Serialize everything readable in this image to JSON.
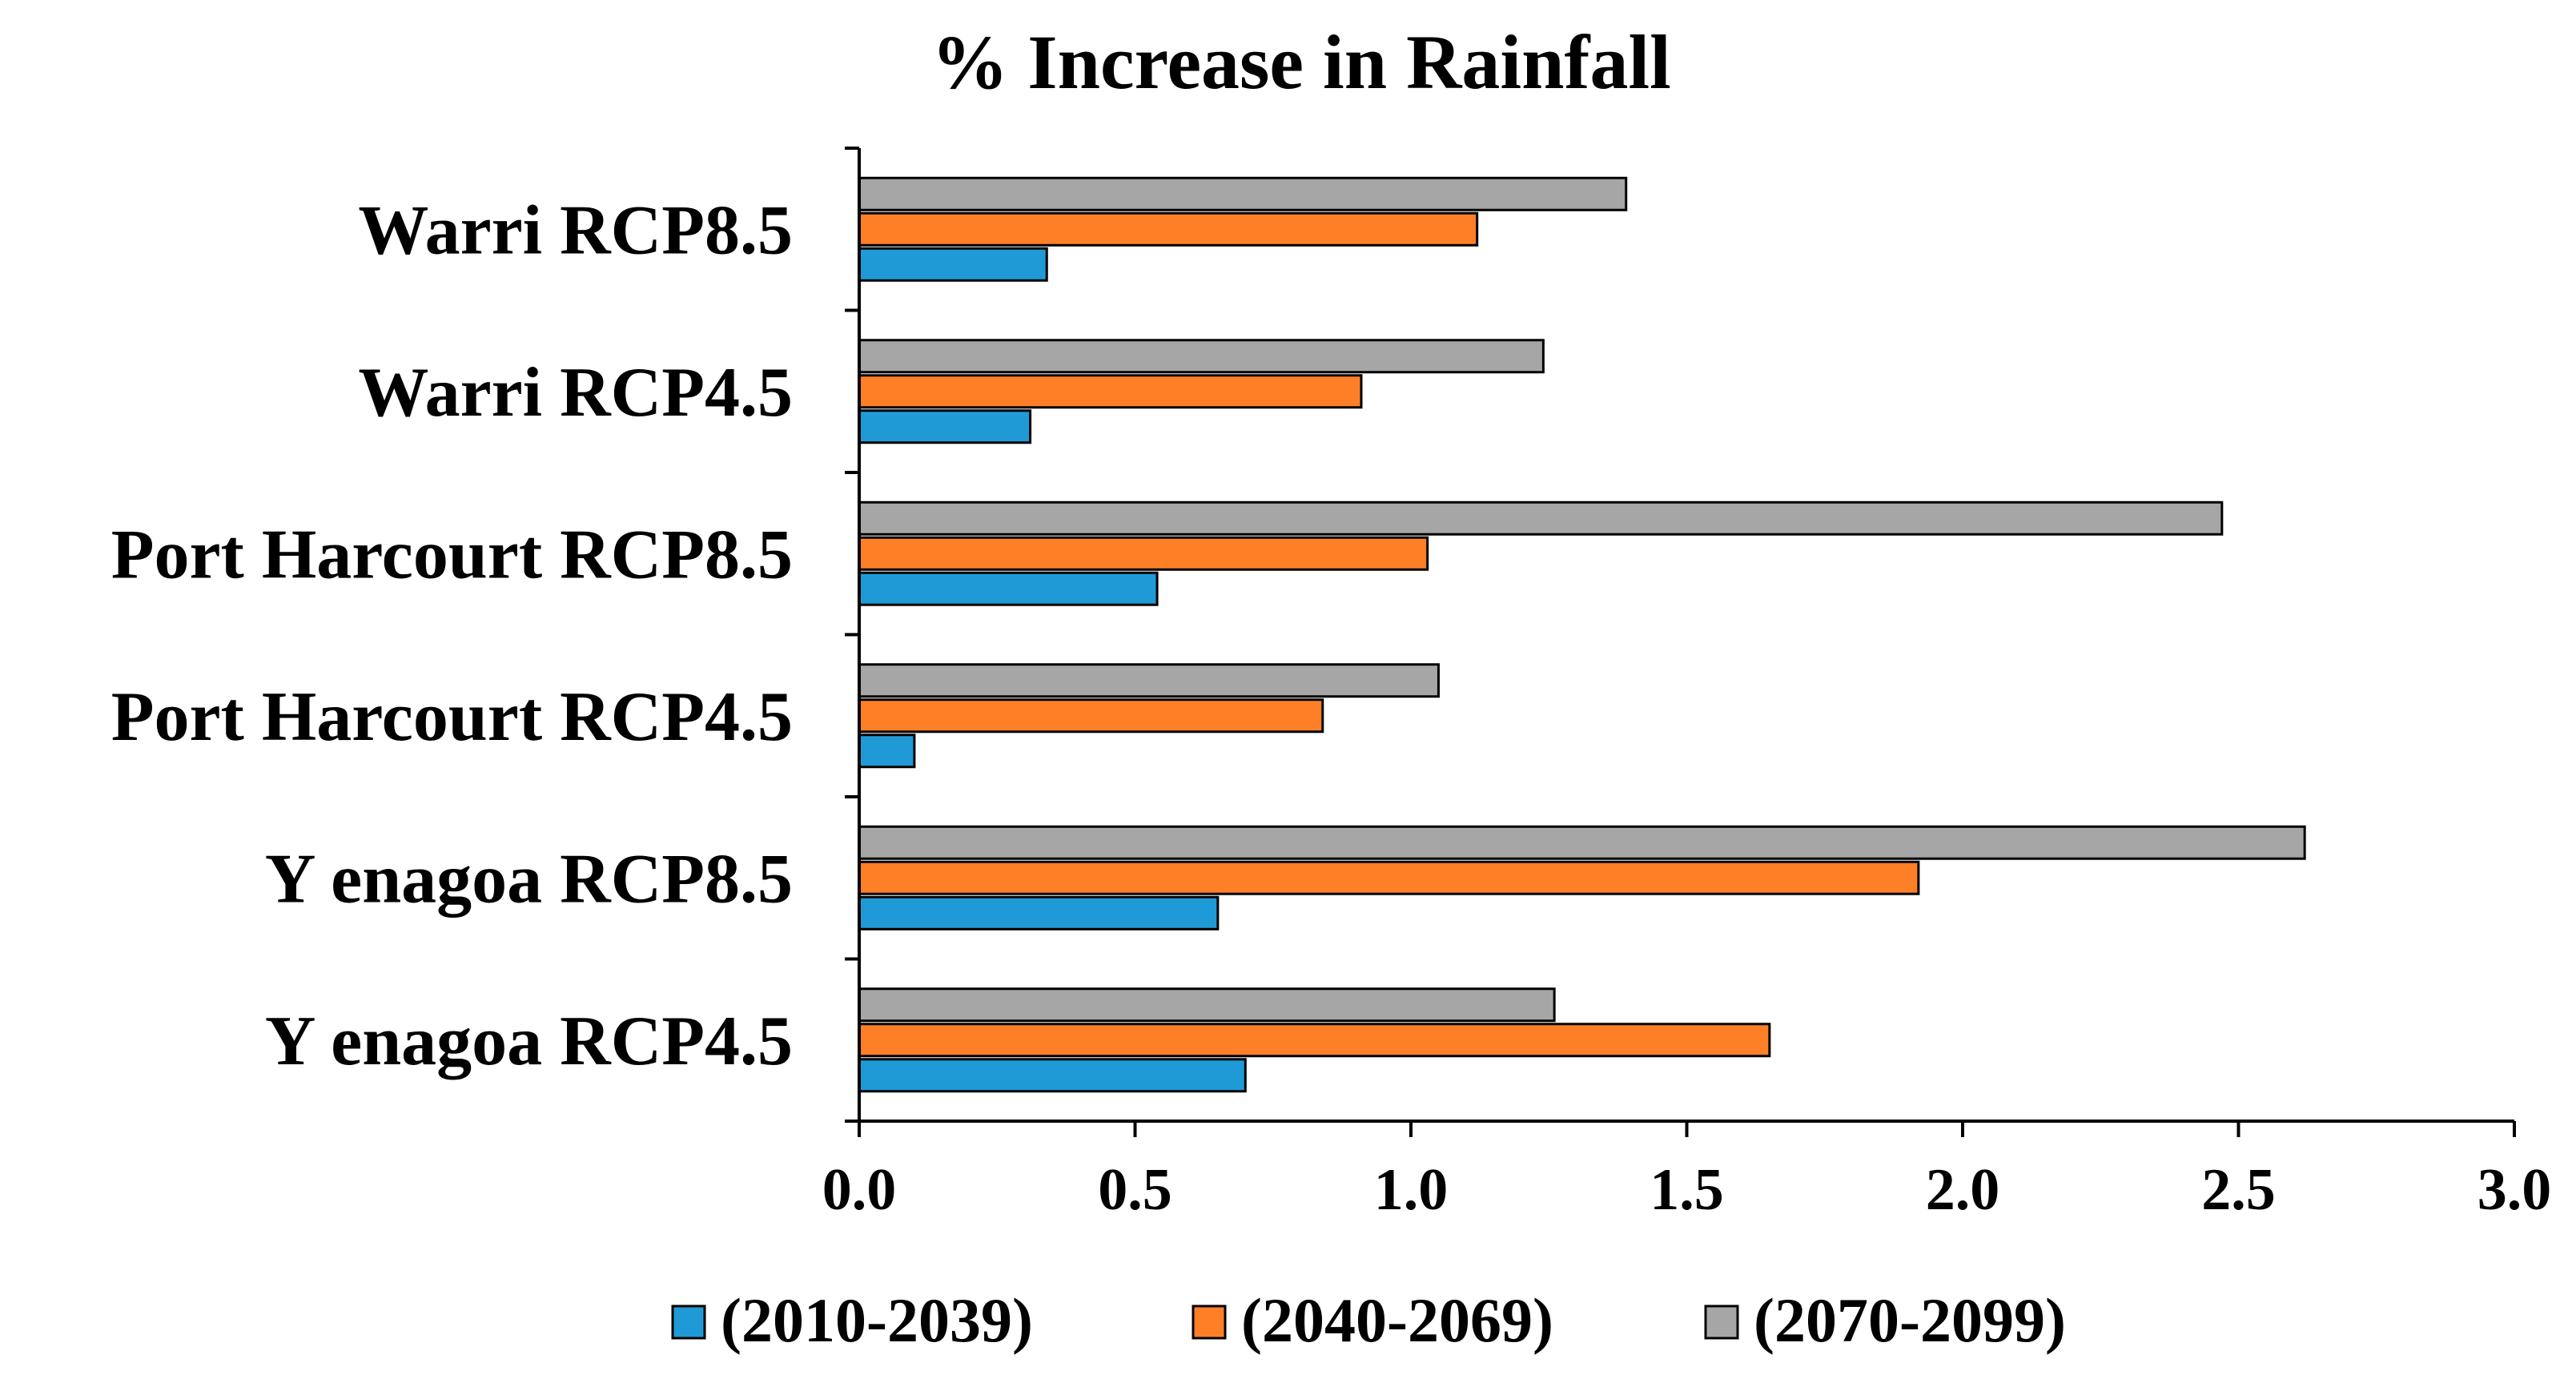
{
  "chart_data": {
    "type": "bar",
    "orientation": "horizontal",
    "title": "% Increase in Rainfall",
    "xlabel": "",
    "ylabel": "",
    "xlim": [
      0,
      3.0
    ],
    "x_ticks": [
      "0.0",
      "0.5",
      "1.0",
      "1.5",
      "2.0",
      "2.5",
      "3.0"
    ],
    "grid": false,
    "legend_position": "bottom",
    "categories": [
      "Warri RCP8.5",
      "Warri RCP4.5",
      "Port Harcourt RCP8.5",
      "Port Harcourt RCP4.5",
      "Y enagoa RCP8.5",
      "Y enagoa RCP4.5"
    ],
    "series": [
      {
        "name": "(2010-2039)",
        "color": "#1f9ad6",
        "values": [
          0.34,
          0.31,
          0.54,
          0.1,
          0.65,
          0.7
        ]
      },
      {
        "name": "(2040-2069)",
        "color": "#ff7f27",
        "values": [
          1.12,
          0.91,
          1.03,
          0.84,
          1.92,
          1.65
        ]
      },
      {
        "name": "(2070-2099)",
        "color": "#a6a6a6",
        "values": [
          1.39,
          1.24,
          2.47,
          1.05,
          2.62,
          1.26
        ]
      }
    ]
  }
}
